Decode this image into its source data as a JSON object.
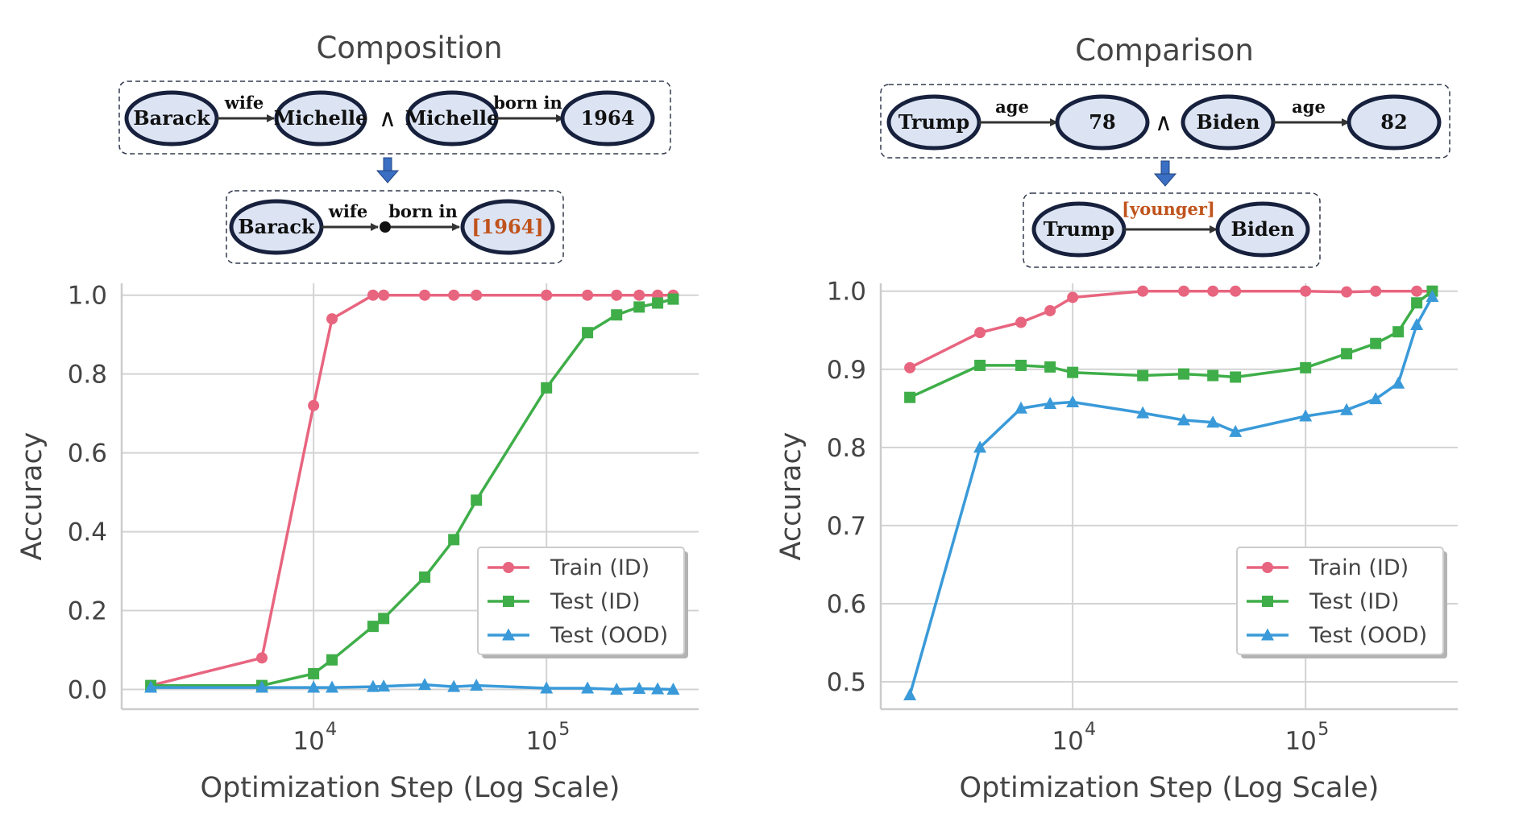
{
  "panels": [
    {
      "title": "Composition",
      "diagram": {
        "top": {
          "nodes": [
            "Barack",
            "Michelle",
            "Michelle",
            "1964"
          ],
          "edges": [
            "wife",
            "born in"
          ],
          "conj": "∧"
        },
        "bottom": {
          "start": "Barack",
          "edges": [
            "wife",
            "born in"
          ],
          "end": "[1964]"
        }
      }
    },
    {
      "title": "Comparison",
      "diagram": {
        "top": {
          "nodes": [
            "Trump",
            "78",
            "Biden",
            "82"
          ],
          "edges": [
            "age",
            "age"
          ],
          "conj": "∧"
        },
        "bottom": {
          "start": "Trump",
          "relation": "[younger]",
          "end": "Biden"
        }
      }
    }
  ],
  "colors": {
    "train": "#e8657f",
    "test_id": "#3fae49",
    "test_ood": "#3a9ad9",
    "node_fill": "#dce4f4",
    "node_stroke": "#17213d",
    "answer": "#c0531c",
    "arrow_down": "#3a6fc4"
  },
  "chart_data": [
    {
      "type": "line",
      "title": "Composition",
      "xlabel": "Optimization Step (Log Scale)",
      "ylabel": "Accuracy",
      "xscale": "log",
      "xlim": [
        1500,
        450000
      ],
      "ylim": [
        -0.05,
        1.03
      ],
      "xticks": [
        {
          "value": 10000,
          "base": "10",
          "exp": "4"
        },
        {
          "value": 100000,
          "base": "10",
          "exp": "5"
        }
      ],
      "yticks": [
        "0.0",
        "0.2",
        "0.4",
        "0.6",
        "0.8",
        "1.0"
      ],
      "grid": true,
      "legend_position": "lower-right",
      "series": [
        {
          "name": "Train (ID)",
          "marker": "circle",
          "x": [
            2000,
            6000,
            10000,
            12000,
            18000,
            20000,
            30000,
            40000,
            50000,
            100000,
            150000,
            200000,
            250000,
            300000,
            350000
          ],
          "y": [
            0.01,
            0.08,
            0.72,
            0.94,
            1.0,
            1.0,
            1.0,
            1.0,
            1.0,
            1.0,
            1.0,
            1.0,
            1.0,
            1.0,
            1.0
          ]
        },
        {
          "name": "Test (ID)",
          "marker": "square",
          "x": [
            2000,
            6000,
            10000,
            12000,
            18000,
            20000,
            30000,
            40000,
            50000,
            100000,
            150000,
            200000,
            250000,
            300000,
            350000
          ],
          "y": [
            0.01,
            0.01,
            0.04,
            0.075,
            0.16,
            0.18,
            0.285,
            0.38,
            0.48,
            0.765,
            0.905,
            0.95,
            0.97,
            0.98,
            0.99
          ]
        },
        {
          "name": "Test (OOD)",
          "marker": "triangle",
          "x": [
            2000,
            6000,
            10000,
            12000,
            18000,
            20000,
            30000,
            40000,
            50000,
            100000,
            150000,
            200000,
            250000,
            300000,
            350000
          ],
          "y": [
            0.005,
            0.005,
            0.005,
            0.005,
            0.007,
            0.008,
            0.012,
            0.007,
            0.01,
            0.003,
            0.003,
            0.0,
            0.002,
            0.001,
            0.0
          ]
        }
      ]
    },
    {
      "type": "line",
      "title": "Comparison",
      "xlabel": "Optimization Step (Log Scale)",
      "ylabel": "Accuracy",
      "xscale": "log",
      "xlim": [
        1500,
        450000
      ],
      "ylim": [
        0.465,
        1.01
      ],
      "xticks": [
        {
          "value": 10000,
          "base": "10",
          "exp": "4"
        },
        {
          "value": 100000,
          "base": "10",
          "exp": "5"
        }
      ],
      "yticks": [
        "0.5",
        "0.6",
        "0.7",
        "0.8",
        "0.9",
        "1.0"
      ],
      "grid": true,
      "legend_position": "lower-right",
      "series": [
        {
          "name": "Train (ID)",
          "marker": "circle",
          "x": [
            2000,
            4000,
            6000,
            8000,
            10000,
            20000,
            30000,
            40000,
            50000,
            100000,
            150000,
            200000,
            300000,
            350000
          ],
          "y": [
            0.902,
            0.947,
            0.96,
            0.975,
            0.992,
            1.0,
            1.0,
            1.0,
            1.0,
            1.0,
            0.999,
            1.0,
            1.0,
            1.0
          ]
        },
        {
          "name": "Test (ID)",
          "marker": "square",
          "x": [
            2000,
            4000,
            6000,
            8000,
            10000,
            20000,
            30000,
            40000,
            50000,
            100000,
            150000,
            200000,
            250000,
            300000,
            350000
          ],
          "y": [
            0.864,
            0.905,
            0.905,
            0.903,
            0.896,
            0.892,
            0.894,
            0.892,
            0.89,
            0.902,
            0.92,
            0.933,
            0.948,
            0.985,
            1.0
          ]
        },
        {
          "name": "Test (OOD)",
          "marker": "triangle",
          "x": [
            2000,
            4000,
            6000,
            8000,
            10000,
            20000,
            30000,
            40000,
            50000,
            100000,
            150000,
            200000,
            250000,
            300000,
            350000
          ],
          "y": [
            0.483,
            0.8,
            0.85,
            0.856,
            0.858,
            0.844,
            0.835,
            0.832,
            0.82,
            0.84,
            0.848,
            0.862,
            0.882,
            0.957,
            0.993
          ]
        }
      ]
    }
  ]
}
